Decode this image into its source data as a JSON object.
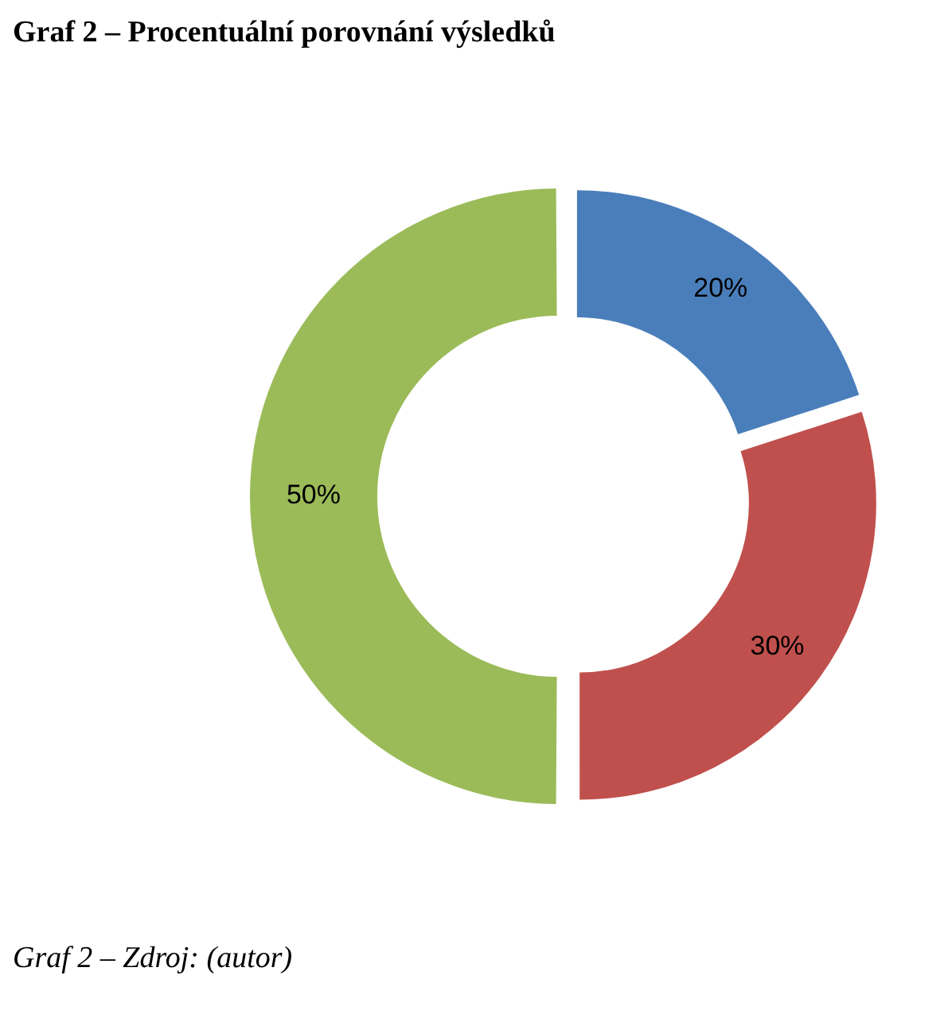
{
  "chart_data": {
    "type": "donut",
    "title": "Graf 2 – Procentuální porovnání výsledků",
    "categories": [
      null,
      null,
      null
    ],
    "values": [
      20,
      30,
      50
    ],
    "colors": [
      "#4a7ebb",
      "#c0504d",
      "#9bbb59"
    ],
    "value_labels": [
      "20%",
      "30%",
      "50%"
    ],
    "annotations": [
      "Graf 2 – Zdroj: (autor)"
    ]
  }
}
